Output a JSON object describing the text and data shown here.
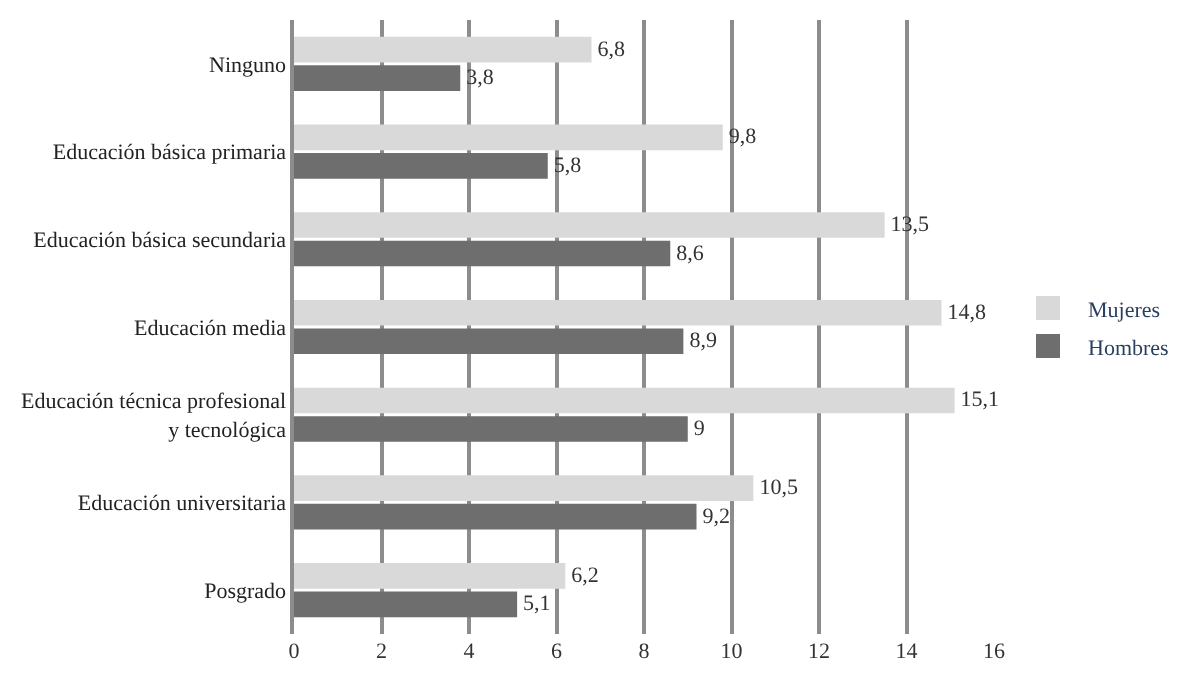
{
  "chart_data": {
    "type": "bar",
    "orientation": "horizontal",
    "categories": [
      "Ninguno",
      "Educación básica primaria",
      "Educación básica secundaria",
      "Educación media",
      "Educación técnica profesional\ny tecnológica",
      "Educación universitaria",
      "Posgrado"
    ],
    "series": [
      {
        "name": "Mujeres",
        "color": "#d9d9d9",
        "values": [
          6.8,
          9.8,
          13.5,
          14.8,
          15.1,
          10.5,
          6.2
        ],
        "value_labels": [
          "6,8",
          "9,8",
          "13,5",
          "14,8",
          "15,1",
          "10,5",
          "6,2"
        ]
      },
      {
        "name": "Hombres",
        "color": "#6e6e6e",
        "values": [
          3.8,
          5.8,
          8.6,
          8.9,
          9,
          9.2,
          5.1
        ],
        "value_labels": [
          "3,8",
          "5,8",
          "8,6",
          "8,9",
          "9",
          "9,2",
          "5,1"
        ]
      }
    ],
    "xlim": [
      0,
      16
    ],
    "xticks": [
      0,
      2,
      4,
      6,
      8,
      10,
      12,
      14,
      16
    ],
    "grid": "x",
    "legend": "right"
  }
}
